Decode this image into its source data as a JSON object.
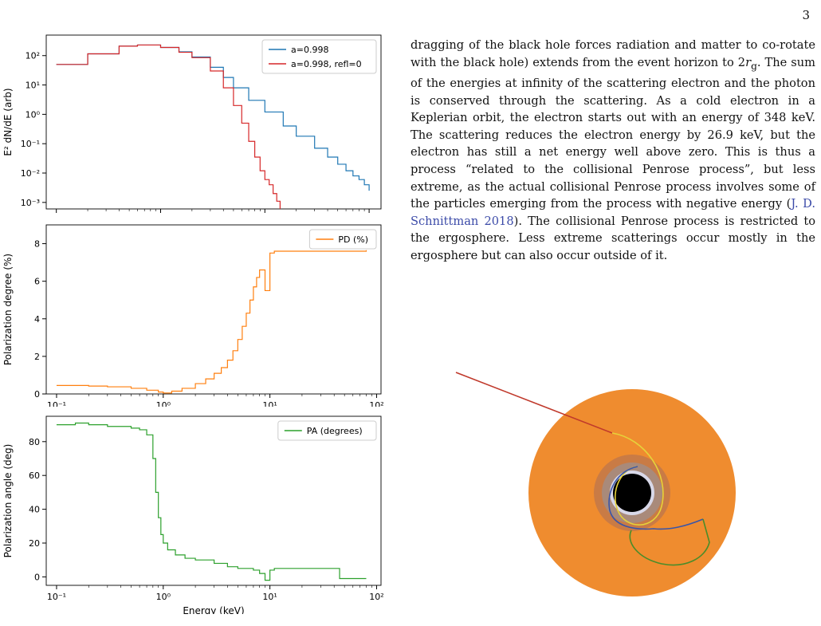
{
  "page_number": "3",
  "paragraph": {
    "before_rg": "dragging of the black hole forces radiation and matter to co-rotate with the black hole) extends from the event horizon to 2",
    "after_rg": ". The sum of the energies at infinity of the scattering electron and the photon is conserved through the scattering. As a cold electron in a Keplerian orbit, the electron starts out with an energy of 348 keV. The scattering reduces the electron energy by 26.9 keV, but the electron has still a net energy well above zero. This is thus a process “related to the collisional Penrose process”, but less extreme, as the actual collisional Penrose process involves some of the particles emerging from the process with negative energy (",
    "citation": "J. D. Schnittman 2018",
    "end": "). The collisional Penrose process is restricted to the ergosphere. Less extreme scatterings occur mostly in the ergosphere but can also occur outside of it.",
    "rg_symbol": "r",
    "rg_subscript": "g"
  },
  "caption_fragment": "(        ²     )",
  "colors": {
    "blue": "#1f77b4",
    "red": "#d62728",
    "orange": "#ff7f0e",
    "green": "#2ca02c",
    "disk": "#ef8c2f"
  },
  "chart_data": [
    {
      "type": "line",
      "ylabel": "E² dN/dE (arb)",
      "xscale": "log",
      "yscale": "log",
      "xlim": [
        0.08,
        130
      ],
      "ylim": [
        0.0006,
        500
      ],
      "xticks": [
        "10⁻¹",
        "10⁰",
        "10¹",
        "10²"
      ],
      "yticks": [
        "10²",
        "10¹",
        "10⁰",
        "10⁻¹",
        "10⁻²",
        "10⁻³"
      ],
      "legend_position": "top-right",
      "series": [
        {
          "name": "a=0.998",
          "color": "#1f77b4",
          "x": [
            0.1,
            0.2,
            0.4,
            0.6,
            1,
            1.5,
            2,
            3,
            4,
            5,
            7,
            10,
            15,
            20,
            30,
            40,
            50,
            60,
            70,
            80,
            90,
            100
          ],
          "y": [
            50,
            115,
            210,
            230,
            190,
            135,
            90,
            40,
            18,
            8,
            3,
            1.2,
            0.4,
            0.18,
            0.07,
            0.035,
            0.02,
            0.012,
            0.008,
            0.006,
            0.004,
            0.0025
          ]
        },
        {
          "name": "a=0.998, refl=0",
          "color": "#d62728",
          "x": [
            0.1,
            0.2,
            0.4,
            0.6,
            1,
            1.5,
            2,
            3,
            4,
            5,
            6,
            7,
            8,
            9,
            10,
            11,
            12,
            13,
            14
          ],
          "y": [
            50,
            115,
            210,
            230,
            190,
            130,
            85,
            30,
            8,
            2,
            0.5,
            0.12,
            0.035,
            0.012,
            0.006,
            0.004,
            0.002,
            0.0011,
            0.0006
          ]
        }
      ]
    },
    {
      "type": "line",
      "ylabel": "Polarization degree (%)",
      "xscale": "log",
      "xlim": [
        0.08,
        110
      ],
      "ylim": [
        0,
        9
      ],
      "xticks": [
        "10⁻¹",
        "10⁰",
        "10¹",
        "10²"
      ],
      "yticks": [
        "0",
        "2",
        "4",
        "6",
        "8"
      ],
      "legend_position": "top-right",
      "series": [
        {
          "name": "PD (%)",
          "color": "#ff7f0e",
          "x": [
            0.1,
            0.2,
            0.3,
            0.5,
            0.7,
            0.9,
            1.0,
            1.2,
            1.5,
            2,
            2.5,
            3,
            3.5,
            4,
            4.5,
            5,
            5.5,
            6,
            6.5,
            7,
            7.5,
            8,
            9,
            10,
            11,
            20,
            40,
            80
          ],
          "y": [
            0.45,
            0.42,
            0.38,
            0.3,
            0.2,
            0.1,
            0.05,
            0.15,
            0.3,
            0.55,
            0.8,
            1.1,
            1.4,
            1.8,
            2.3,
            2.9,
            3.6,
            4.3,
            5.0,
            5.7,
            6.2,
            6.6,
            5.5,
            7.5,
            7.6,
            7.6,
            7.6,
            7.65
          ]
        }
      ]
    },
    {
      "type": "line",
      "ylabel": "Polarization angle (deg)",
      "xlabel": "Energy (keV)",
      "xscale": "log",
      "xlim": [
        0.08,
        110
      ],
      "ylim": [
        -5,
        95
      ],
      "xticks": [
        "10⁻¹",
        "10⁰",
        "10¹",
        "10²"
      ],
      "yticks": [
        "0",
        "20",
        "40",
        "60",
        "80"
      ],
      "legend_position": "top-right",
      "series": [
        {
          "name": "PA (degrees)",
          "color": "#2ca02c",
          "x": [
            0.1,
            0.15,
            0.2,
            0.3,
            0.4,
            0.5,
            0.6,
            0.7,
            0.8,
            0.85,
            0.9,
            0.95,
            1.0,
            1.1,
            1.3,
            1.6,
            2,
            3,
            4,
            5,
            7,
            8,
            9,
            10,
            11,
            20,
            40,
            45,
            80
          ],
          "y": [
            90,
            91,
            90,
            89,
            89,
            88,
            87,
            84,
            70,
            50,
            35,
            25,
            20,
            16,
            13,
            11,
            10,
            8,
            6,
            5,
            4,
            2,
            -2,
            4,
            5,
            5,
            5,
            -1,
            -1
          ]
        }
      ]
    }
  ]
}
